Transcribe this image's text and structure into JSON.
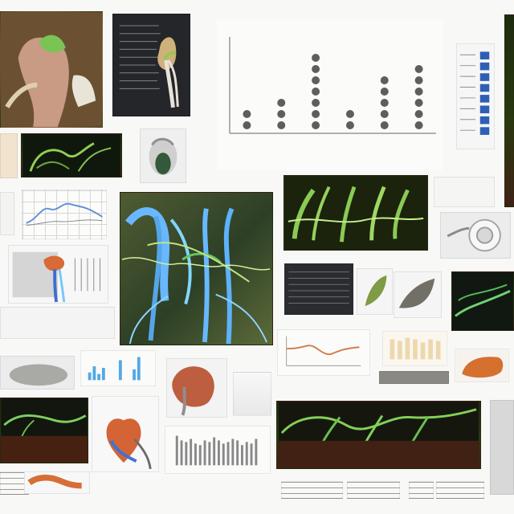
{
  "collage": {
    "main_chart_title": "",
    "y_axis_label": "",
    "x_axis_caption": ""
  },
  "chart_data": {
    "type": "bar",
    "categories": [
      "",
      "",
      "",
      "",
      "",
      ""
    ],
    "values": [
      2,
      3,
      7,
      2,
      5,
      6
    ],
    "title": "",
    "xlabel": "",
    "ylabel": "",
    "ylim": [
      0,
      8
    ]
  },
  "colors": {
    "accent_green": "#7dbb3a",
    "accent_blue": "#3ea6e8",
    "accent_brown": "#9a5b31",
    "accent_orange": "#d86a2f"
  }
}
